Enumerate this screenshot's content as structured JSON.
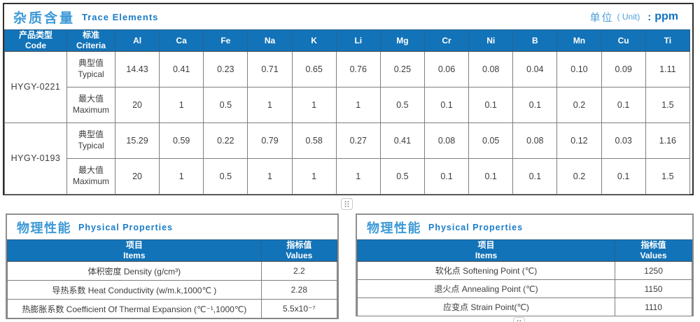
{
  "colors": {
    "header_bg": "#1273B8",
    "title_zh_accent": "#3D99D6",
    "title_en_accent": "#1B7CC8",
    "unit_value_accent": "#0E72C2"
  },
  "trace": {
    "title_zh": "杂质含量",
    "title_en": "Trace Elements",
    "unit_zh": "单位",
    "unit_en": "( Unit)",
    "unit_colon": ":",
    "unit_value": "ppm",
    "col_code": {
      "zh": "产品类型",
      "en": "Code"
    },
    "col_criteria": {
      "zh": "标准",
      "en": "Criteria"
    },
    "elements": [
      "Al",
      "Ca",
      "Fe",
      "Na",
      "K",
      "Li",
      "Mg",
      "Cr",
      "Ni",
      "B",
      "Mn",
      "Cu",
      "Ti"
    ],
    "products": [
      {
        "code": "HYGY-0221",
        "rows": [
          {
            "label_zh": "典型值",
            "label_en": "Typical",
            "values": [
              "14.43",
              "0.41",
              "0.23",
              "0.71",
              "0.65",
              "0.76",
              "0.25",
              "0.06",
              "0.08",
              "0.04",
              "0.10",
              "0.09",
              "1.11"
            ]
          },
          {
            "label_zh": "最大值",
            "label_en": "Maximum",
            "values": [
              "20",
              "1",
              "0.5",
              "1",
              "1",
              "1",
              "0.5",
              "0.1",
              "0.1",
              "0.1",
              "0.2",
              "0.1",
              "1.5"
            ]
          }
        ]
      },
      {
        "code": "HYGY-0193",
        "rows": [
          {
            "label_zh": "典型值",
            "label_en": "Typical",
            "values": [
              "15.29",
              "0.59",
              "0.22",
              "0.79",
              "0.58",
              "0.27",
              "0.41",
              "0.08",
              "0.05",
              "0.08",
              "0.12",
              "0.03",
              "1.16"
            ]
          },
          {
            "label_zh": "最大值",
            "label_en": "Maximum",
            "values": [
              "20",
              "1",
              "0.5",
              "1",
              "1",
              "1",
              "0.5",
              "0.1",
              "0.1",
              "0.1",
              "0.2",
              "0.1",
              "1.5"
            ]
          }
        ]
      }
    ]
  },
  "physical_left": {
    "title_zh": "物理性能",
    "title_en": "Physical Properties",
    "col_items": {
      "zh": "项目",
      "en": "Items"
    },
    "col_values": {
      "zh": "指标值",
      "en": "Values"
    },
    "rows": [
      {
        "item": "体积密度 Density (g/cm³)",
        "value": "2.2"
      },
      {
        "item": "导热系数 Heat Conductivity (w/m.k,1000℃ )",
        "value": "2.28"
      },
      {
        "item": "热膨胀系数 Coefficient Of Thermal Expansion (℃⁻¹,1000℃)",
        "value": "5.5x10⁻⁷"
      }
    ]
  },
  "physical_right": {
    "title_zh": "物理性能",
    "title_en": "Physical Properties",
    "col_items": {
      "zh": "项目",
      "en": "Items"
    },
    "col_values": {
      "zh": "指标值",
      "en": "Values"
    },
    "rows": [
      {
        "item": "软化点 Softening Point (℃)",
        "value": "1250"
      },
      {
        "item": "退火点 Annealing Point (℃)",
        "value": "1150"
      },
      {
        "item": "应变点 Strain Point(℃)",
        "value": "1110"
      }
    ]
  }
}
